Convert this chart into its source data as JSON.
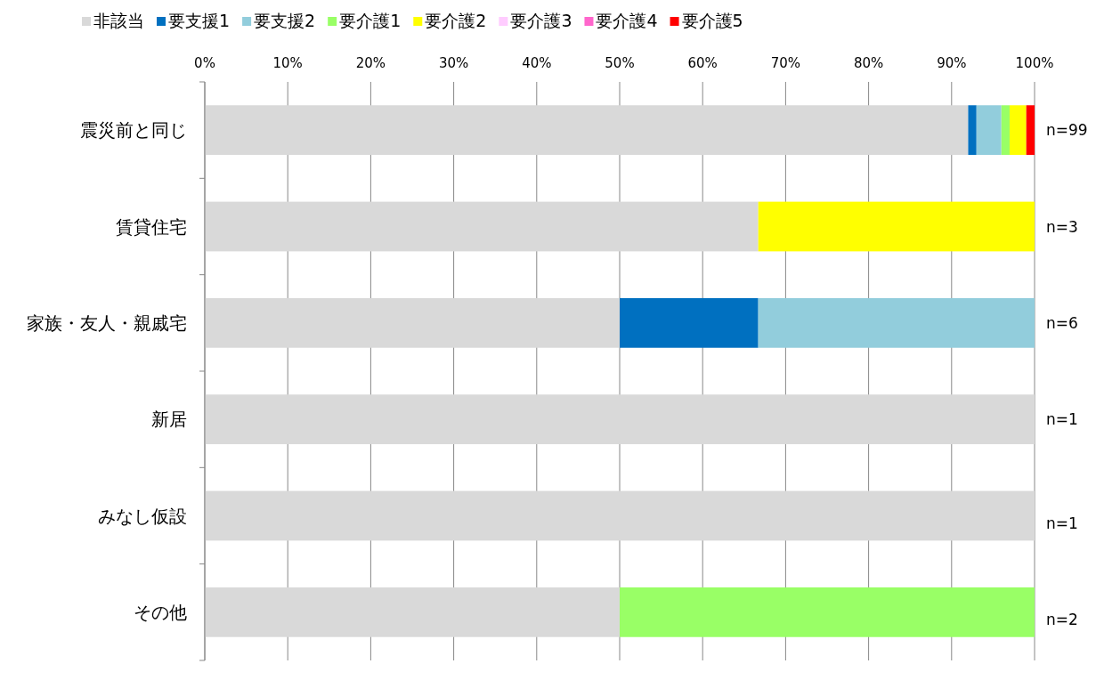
{
  "chart_data": {
    "type": "bar",
    "orientation": "horizontal",
    "stacked": true,
    "grid": "x",
    "legend": "top",
    "categories": [
      "震災前と同じ",
      "賃貸住宅",
      "家族・友人・親戚宅",
      "新居",
      "みなし仮設",
      "その他"
    ],
    "series": [
      {
        "name": "非該当",
        "color": "#d9d9d9",
        "values": [
          92,
          66.7,
          50,
          100,
          100,
          50
        ]
      },
      {
        "name": "要支援1",
        "color": "#0070c0",
        "values": [
          1,
          0,
          16.7,
          0,
          0,
          0
        ]
      },
      {
        "name": "要支援2",
        "color": "#92cddc",
        "values": [
          3,
          0,
          33.3,
          0,
          0,
          0
        ]
      },
      {
        "name": "要介護1",
        "color": "#99ff66",
        "values": [
          1,
          0,
          0,
          0,
          0,
          50
        ]
      },
      {
        "name": "要介護2",
        "color": "#ffff00",
        "values": [
          2,
          33.3,
          0,
          0,
          0,
          0
        ]
      },
      {
        "name": "要介護3",
        "color": "#ffccff",
        "values": [
          0,
          0,
          0,
          0,
          0,
          0
        ]
      },
      {
        "name": "要介護4",
        "color": "#ff66cc",
        "values": [
          0,
          0,
          0,
          0,
          0,
          0
        ]
      },
      {
        "name": "要介護5",
        "color": "#ff0000",
        "values": [
          1,
          0,
          0,
          0,
          0,
          0
        ]
      }
    ],
    "xlim": [
      0,
      100
    ],
    "xticks": [
      {
        "value": 0,
        "label": "0%"
      },
      {
        "value": 10,
        "label": "10%"
      },
      {
        "value": 20,
        "label": "20%"
      },
      {
        "value": 30,
        "label": "30%"
      },
      {
        "value": 40,
        "label": "40%"
      },
      {
        "value": 50,
        "label": "50%"
      },
      {
        "value": 60,
        "label": "60%"
      },
      {
        "value": 70,
        "label": "70%"
      },
      {
        "value": 80,
        "label": "80%"
      },
      {
        "value": 90,
        "label": "90%"
      },
      {
        "value": 100,
        "label": "100%"
      }
    ],
    "annotations": [
      "n=99",
      "n=3",
      "n=6",
      "n=1",
      "n=1",
      "n=2"
    ]
  }
}
